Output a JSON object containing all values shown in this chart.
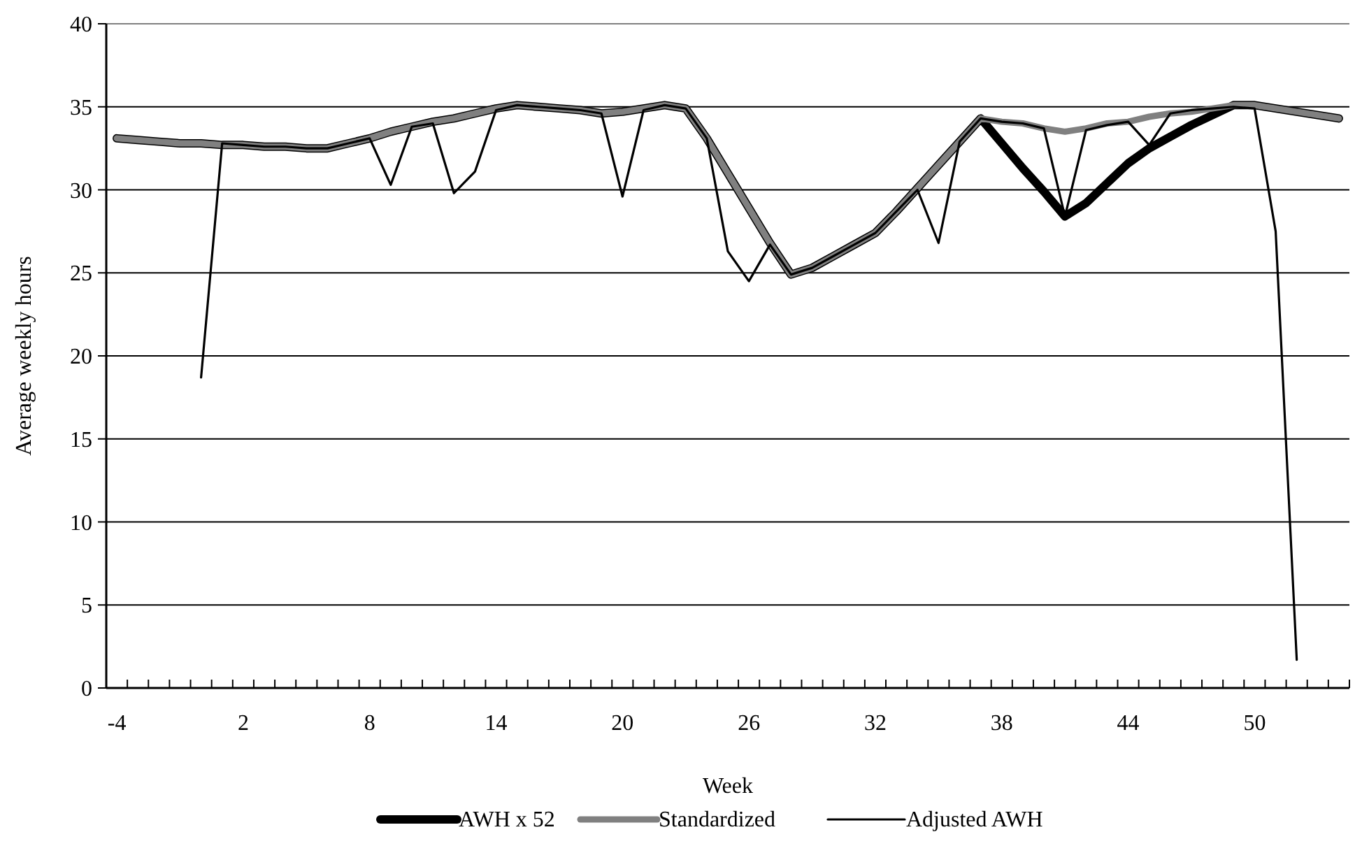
{
  "chart_data": {
    "type": "line",
    "xlabel": "Week",
    "ylabel": "Average weekly hours",
    "categories": [
      "-4",
      null,
      null,
      null,
      null,
      null,
      "2",
      null,
      null,
      null,
      null,
      null,
      "8",
      null,
      null,
      null,
      null,
      null,
      "14",
      null,
      null,
      null,
      null,
      null,
      "20",
      null,
      null,
      null,
      null,
      null,
      "26",
      null,
      null,
      null,
      null,
      null,
      "32",
      null,
      null,
      null,
      null,
      null,
      "38",
      null,
      null,
      null,
      null,
      null,
      "44",
      null,
      null,
      null,
      null,
      null,
      "50",
      null,
      null,
      null,
      null
    ],
    "series": [
      {
        "name": "AWH x 52",
        "color": "#000000",
        "values": [
          33.1,
          33.0,
          32.9,
          32.8,
          32.8,
          32.7,
          32.7,
          32.6,
          32.6,
          32.5,
          32.5,
          32.8,
          33.1,
          33.5,
          33.8,
          34.1,
          34.3,
          34.6,
          34.9,
          35.1,
          35.0,
          34.9,
          34.8,
          34.6,
          34.7,
          34.9,
          35.1,
          34.9,
          33.1,
          31.0,
          28.9,
          26.8,
          24.9,
          25.3,
          26.0,
          26.7,
          27.4,
          28.7,
          30.1,
          31.5,
          32.9,
          34.3,
          32.8,
          31.3,
          29.9,
          28.4,
          29.2,
          30.4,
          31.6,
          32.5,
          33.2,
          33.9,
          34.5,
          35.1,
          35.1,
          34.9,
          34.7,
          34.5,
          34.3
        ]
      },
      {
        "name": "Standardized",
        "color": "#808080",
        "values": [
          33.1,
          33.0,
          32.9,
          32.8,
          32.8,
          32.7,
          32.7,
          32.6,
          32.6,
          32.5,
          32.5,
          32.8,
          33.1,
          33.5,
          33.8,
          34.1,
          34.3,
          34.6,
          34.9,
          35.1,
          35.0,
          34.9,
          34.8,
          34.6,
          34.7,
          34.9,
          35.1,
          34.9,
          33.1,
          31.0,
          28.9,
          26.8,
          24.9,
          25.3,
          26.0,
          26.7,
          27.4,
          28.7,
          30.1,
          31.5,
          32.9,
          34.3,
          34.1,
          34.0,
          33.7,
          33.5,
          33.7,
          34.0,
          34.1,
          34.4,
          34.6,
          34.7,
          34.9,
          35.1,
          35.1,
          34.9,
          34.7,
          34.5,
          34.3
        ]
      },
      {
        "name": "Adjusted AWH",
        "color": "#000000",
        "values": [
          null,
          null,
          null,
          null,
          18.7,
          32.8,
          32.7,
          32.6,
          32.6,
          32.5,
          32.5,
          32.8,
          33.1,
          30.3,
          33.8,
          34.0,
          29.8,
          31.1,
          34.8,
          35.1,
          35.0,
          34.9,
          34.8,
          34.6,
          29.6,
          34.8,
          35.1,
          34.9,
          33.1,
          26.3,
          24.5,
          26.7,
          24.9,
          25.3,
          26.0,
          26.7,
          27.4,
          28.7,
          30.0,
          26.8,
          32.9,
          34.3,
          34.1,
          34.0,
          33.7,
          28.4,
          33.6,
          33.9,
          34.1,
          32.7,
          34.6,
          34.8,
          34.9,
          35.0,
          34.9,
          27.5,
          1.7,
          null,
          null
        ]
      }
    ],
    "ylim": [
      0,
      40
    ],
    "yticks": [
      0,
      5,
      10,
      15,
      20,
      25,
      30,
      35,
      40
    ],
    "grid": "y",
    "legend": "bottom"
  }
}
